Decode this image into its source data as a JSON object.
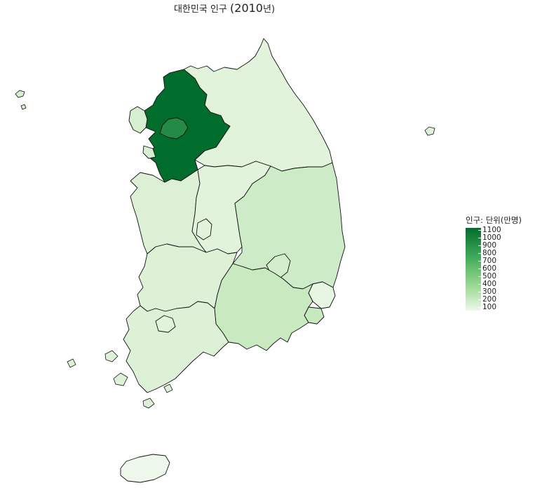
{
  "map": {
    "title_prefix": "대한민국 인구",
    "title_year": "(2010",
    "title_suffix": "년)",
    "legend": {
      "title": "인구: 단위(만명)",
      "ticks": [
        "1100",
        "1000",
        "900",
        "800",
        "700",
        "600",
        "500",
        "400",
        "300",
        "200",
        "100"
      ],
      "low_color": "#edf8e9",
      "high_color": "#006d2c"
    },
    "regions": [
      {
        "name": "Gyeonggi",
        "value": 1140,
        "color": "#006d2c"
      },
      {
        "name": "Seoul",
        "value": 980,
        "color": "#238b45"
      },
      {
        "name": "Incheon",
        "value": 270,
        "color": "#d6efd0"
      },
      {
        "name": "Gangwon",
        "value": 150,
        "color": "#e2f3dc"
      },
      {
        "name": "Chungbuk",
        "value": 150,
        "color": "#e2f3dc"
      },
      {
        "name": "Chungnam",
        "value": 200,
        "color": "#dbf0d5"
      },
      {
        "name": "Daejeon",
        "value": 150,
        "color": "#e2f3dc"
      },
      {
        "name": "Gyeongbuk",
        "value": 260,
        "color": "#cdebc6"
      },
      {
        "name": "Daegu",
        "value": 240,
        "color": "#d2edcb"
      },
      {
        "name": "Ulsan",
        "value": 110,
        "color": "#e7f5e3"
      },
      {
        "name": "Busan",
        "value": 340,
        "color": "#c7e9c0"
      },
      {
        "name": "Gyeongnam",
        "value": 320,
        "color": "#c9e9c1"
      },
      {
        "name": "Jeonbuk",
        "value": 180,
        "color": "#ddf1d7"
      },
      {
        "name": "Gwangju",
        "value": 140,
        "color": "#e2f3dc"
      },
      {
        "name": "Jeonnam",
        "value": 170,
        "color": "#ddf1d7"
      },
      {
        "name": "Jeju",
        "value": 55,
        "color": "#eef8ea"
      }
    ]
  }
}
